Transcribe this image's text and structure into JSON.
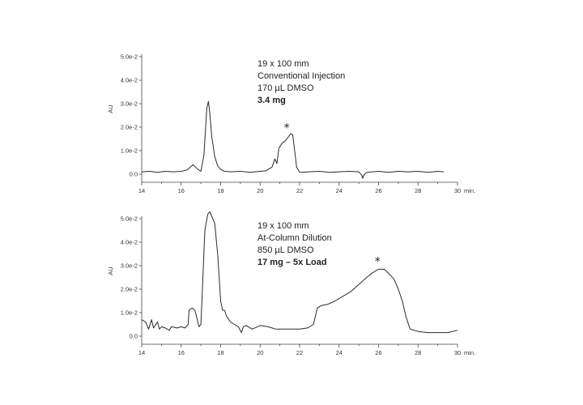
{
  "chart_data": [
    {
      "type": "line",
      "ylabel": "AU",
      "xunit": "min.",
      "xlim": [
        14,
        30
      ],
      "ylim": [
        0,
        0.05
      ],
      "x_ticks": [
        14,
        16,
        18,
        20,
        22,
        24,
        26,
        28,
        30
      ],
      "y_ticks": [
        "0.0",
        "1.0e-2",
        "2.0e-2",
        "3.0e-2",
        "4.0e-2",
        "5.0e-2"
      ],
      "annotation": [
        "19 x 100 mm",
        "Conventional Injection",
        "170 µL DMSO",
        "3.4 mg"
      ],
      "marker": {
        "symbol": "*",
        "x": 21.35,
        "y": 0.0175
      },
      "series": [
        {
          "x": [
            14.0,
            14.4,
            14.8,
            15.2,
            15.6,
            16.0,
            16.3,
            16.6,
            16.85,
            17.0,
            17.15,
            17.3,
            17.38,
            17.45,
            17.55,
            17.7,
            17.85,
            18.0,
            18.2,
            18.5,
            19.0,
            19.5,
            20.0,
            20.3,
            20.6,
            20.75,
            20.85,
            20.95,
            21.1,
            21.25,
            21.4,
            21.55,
            21.65,
            21.75,
            21.85,
            22.0,
            22.5,
            23.0,
            23.5,
            24.0,
            24.5,
            25.0,
            25.15,
            25.2,
            25.25,
            25.4,
            26.0,
            26.5,
            27.0,
            27.5,
            28.0,
            28.5,
            29.0,
            29.3
          ],
          "y": [
            0.001,
            0.0012,
            0.0008,
            0.0012,
            0.001,
            0.0012,
            0.0018,
            0.004,
            0.002,
            0.0012,
            0.008,
            0.028,
            0.031,
            0.026,
            0.016,
            0.0075,
            0.0035,
            0.002,
            0.0012,
            0.001,
            0.0012,
            0.0008,
            0.0012,
            0.0015,
            0.003,
            0.0065,
            0.0045,
            0.011,
            0.013,
            0.014,
            0.0155,
            0.0172,
            0.0168,
            0.01,
            0.003,
            0.0008,
            0.001,
            0.0012,
            0.0008,
            0.001,
            0.0012,
            0.001,
            -0.0005,
            -0.0018,
            -0.0005,
            0.0008,
            0.0012,
            0.0008,
            0.0012,
            0.001,
            0.0012,
            0.0008,
            0.0012,
            0.001
          ]
        }
      ]
    },
    {
      "type": "line",
      "ylabel": "AU",
      "xunit": "min.",
      "xlim": [
        14,
        30
      ],
      "ylim": [
        0,
        0.05
      ],
      "x_ticks": [
        14,
        16,
        18,
        20,
        22,
        24,
        26,
        28,
        30
      ],
      "y_ticks": [
        "0.0",
        "1.0e-2",
        "2.0e-2",
        "3.0e-2",
        "4.0e-2",
        "5.0e-2"
      ],
      "annotation": [
        "19 x 100 mm",
        "At-Column Dilution",
        "850 µL DMSO",
        "17 mg – 5x Load"
      ],
      "marker": {
        "symbol": "*",
        "x": 25.95,
        "y": 0.0295
      },
      "series": [
        {
          "x": [
            14.0,
            14.2,
            14.35,
            14.5,
            14.6,
            14.8,
            14.9,
            15.0,
            15.2,
            15.4,
            15.5,
            15.8,
            16.0,
            16.2,
            16.35,
            16.4,
            16.55,
            16.7,
            16.9,
            17.0,
            17.1,
            17.2,
            17.35,
            17.45,
            17.55,
            17.7,
            17.85,
            18.0,
            18.1,
            18.2,
            18.3,
            18.5,
            18.7,
            18.9,
            19.05,
            19.15,
            19.3,
            19.6,
            20.0,
            20.4,
            20.8,
            21.2,
            21.6,
            22.0,
            22.4,
            22.7,
            22.9,
            23.1,
            23.4,
            23.8,
            24.2,
            24.6,
            25.0,
            25.4,
            25.7,
            26.0,
            26.3,
            26.6,
            26.8,
            27.0,
            27.2,
            27.4,
            27.6,
            28.0,
            28.5,
            29.0,
            29.5,
            30.0
          ],
          "y": [
            0.007,
            0.006,
            0.003,
            0.007,
            0.0035,
            0.006,
            0.003,
            0.004,
            0.0035,
            0.0025,
            0.004,
            0.0035,
            0.004,
            0.0035,
            0.005,
            0.011,
            0.012,
            0.011,
            0.004,
            0.005,
            0.025,
            0.045,
            0.052,
            0.053,
            0.051,
            0.048,
            0.035,
            0.015,
            0.011,
            0.011,
            0.0085,
            0.006,
            0.005,
            0.004,
            0.0015,
            0.004,
            0.0045,
            0.003,
            0.0045,
            0.004,
            0.003,
            0.003,
            0.003,
            0.003,
            0.0035,
            0.005,
            0.012,
            0.013,
            0.0135,
            0.015,
            0.017,
            0.019,
            0.022,
            0.025,
            0.027,
            0.0285,
            0.0285,
            0.026,
            0.024,
            0.02,
            0.015,
            0.008,
            0.003,
            0.002,
            0.0015,
            0.0015,
            0.0015,
            0.0025
          ]
        }
      ]
    }
  ]
}
